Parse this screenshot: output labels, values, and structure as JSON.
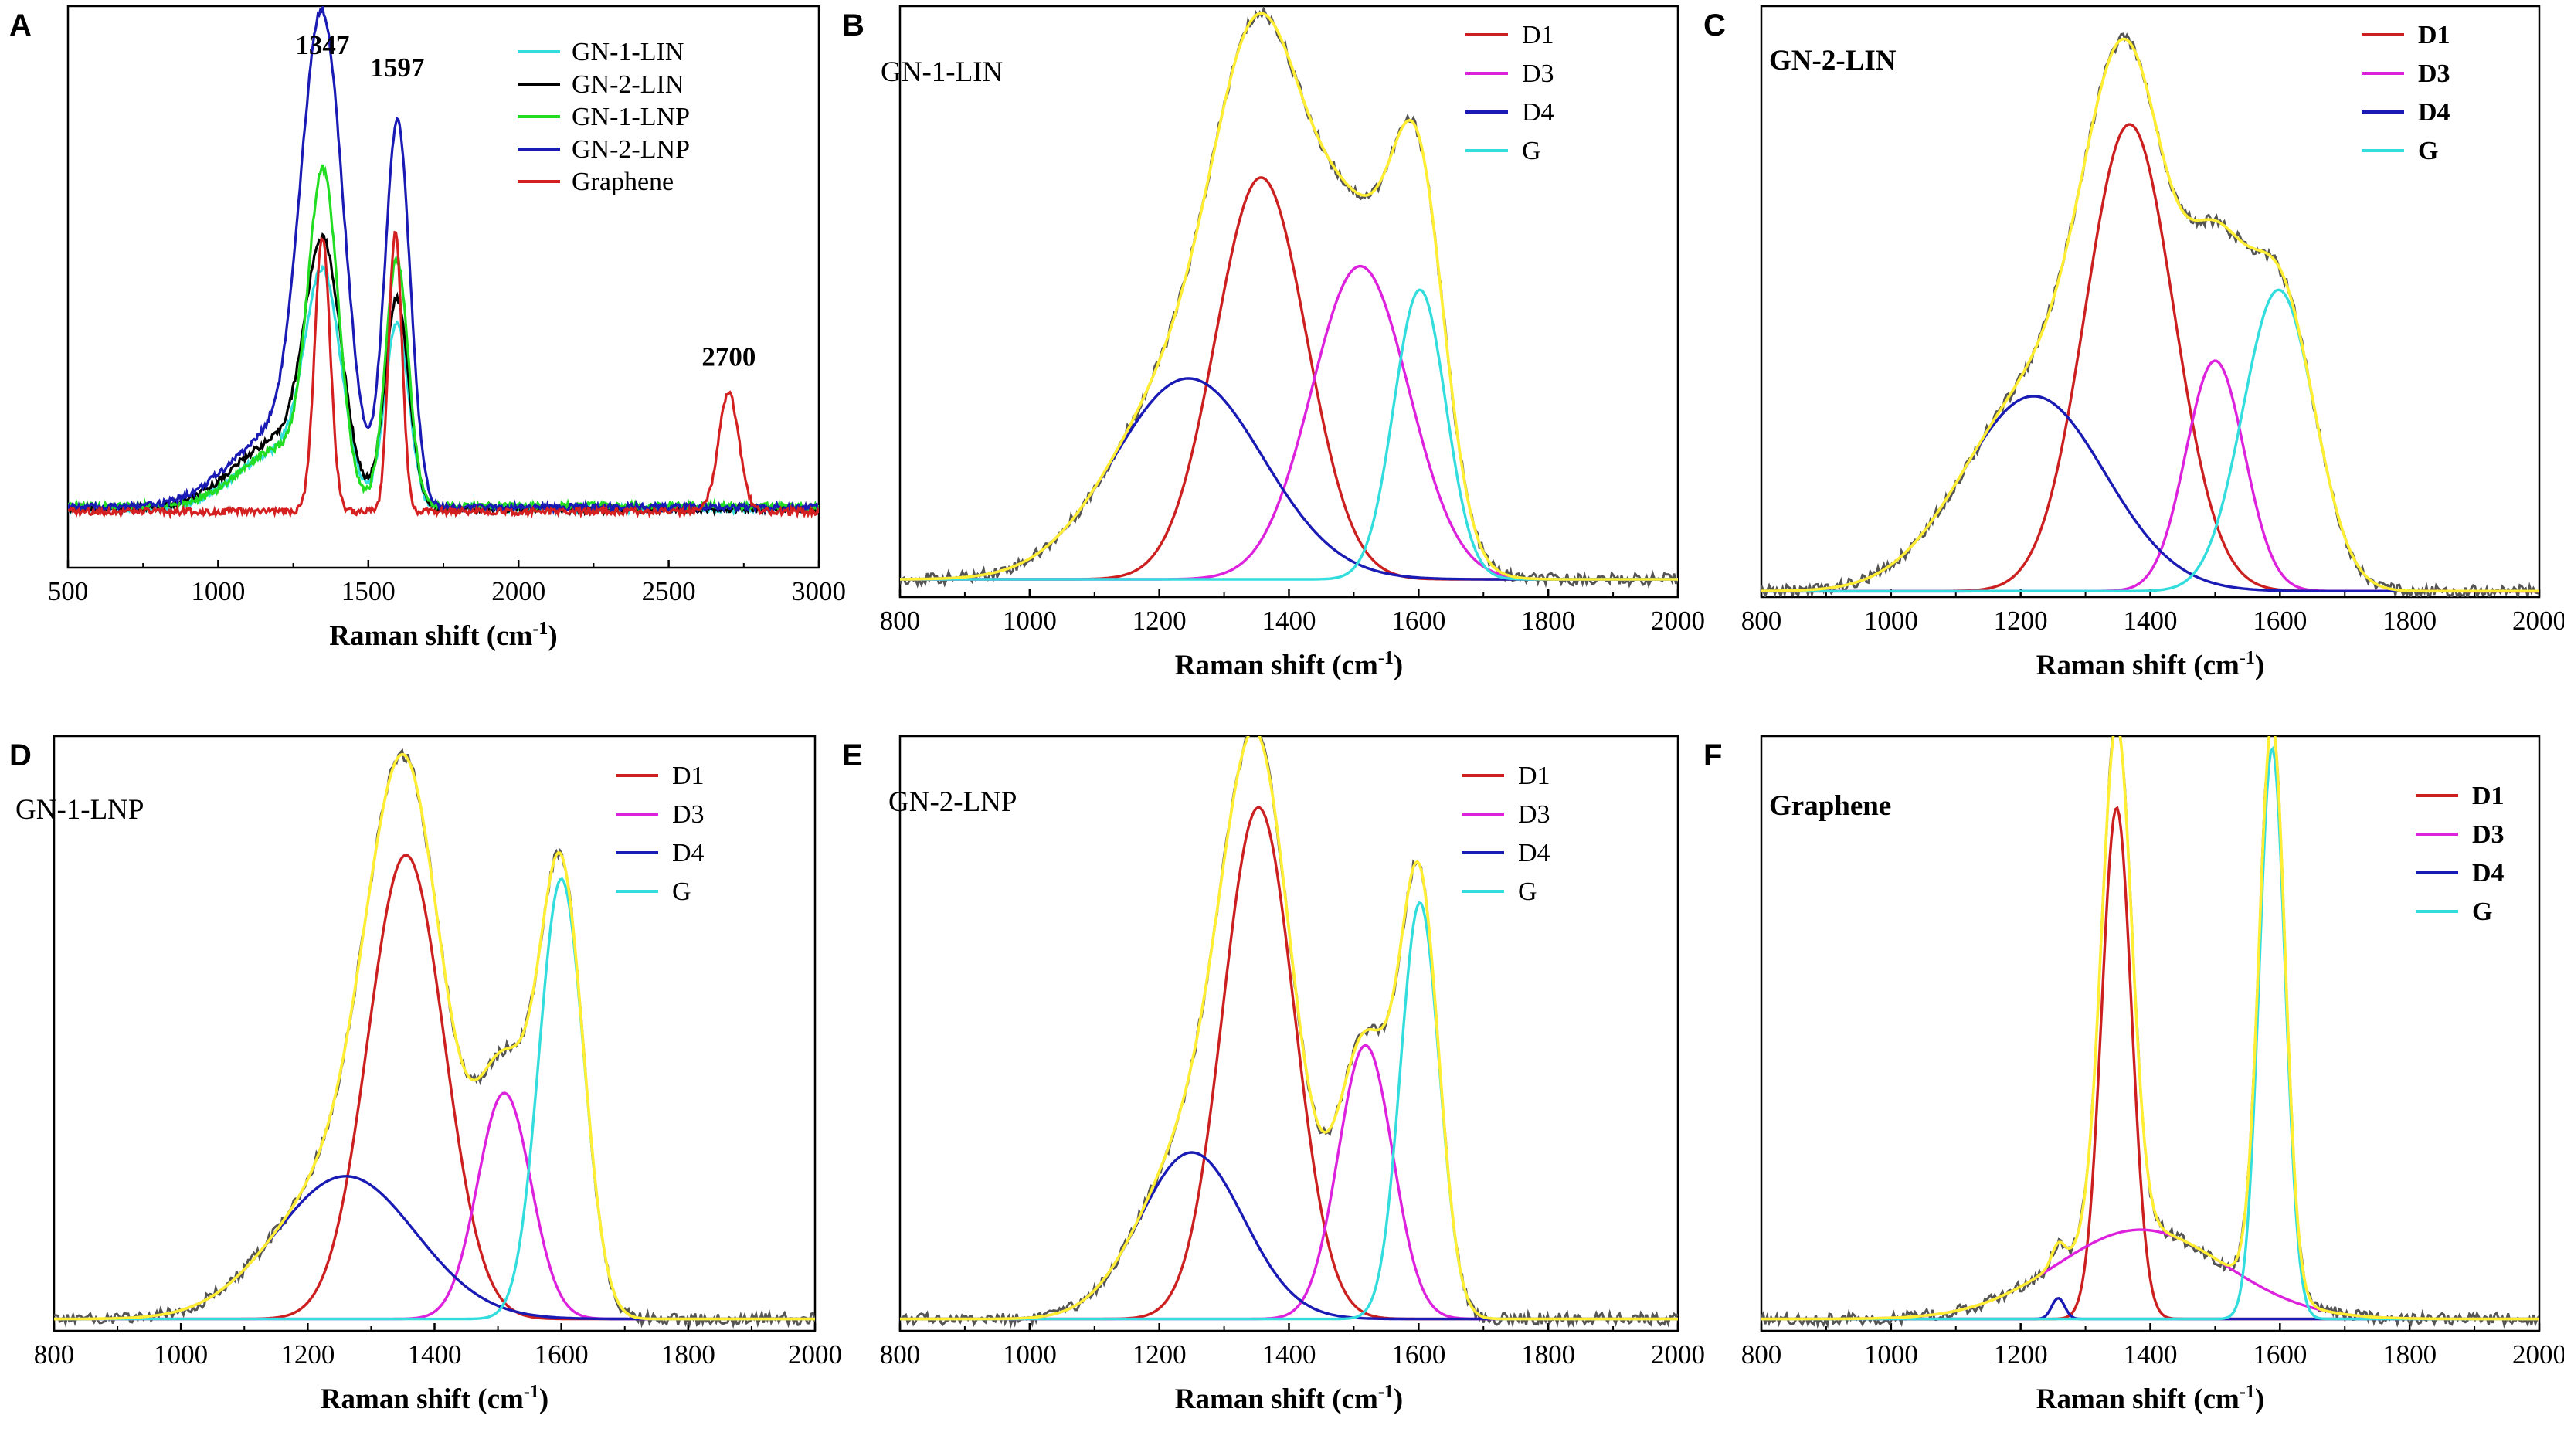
{
  "chart_data": [
    {
      "id": "A",
      "type": "line",
      "panel_letter": "A",
      "xlabel": "Raman shift (cm",
      "xlabel_sup": "-1",
      "xlabel_close": ")",
      "xlim": [
        500,
        3000
      ],
      "ylim": [
        0,
        1.0
      ],
      "xticks": [
        500,
        1000,
        1500,
        2000,
        2500,
        3000
      ],
      "peak_labels": [
        {
          "text": "1347",
          "x": 1347,
          "y": 0.915
        },
        {
          "text": "1597",
          "x": 1597,
          "y": 0.875
        },
        {
          "text": "2700",
          "x": 2700,
          "y": 0.36
        }
      ],
      "series": [
        {
          "name": "GN-1-LIN",
          "color": "#33dddd",
          "baseline": 0.105,
          "peaks": [
            {
              "c": 1350,
              "h": 0.37,
              "w": 60
            },
            {
              "c": 1595,
              "h": 0.33,
              "w": 40
            },
            {
              "c": 1200,
              "h": 0.1,
              "w": 140
            }
          ]
        },
        {
          "name": "GN-2-LIN",
          "color": "#000000",
          "baseline": 0.105,
          "peaks": [
            {
              "c": 1350,
              "h": 0.41,
              "w": 60
            },
            {
              "c": 1595,
              "h": 0.37,
              "w": 40
            },
            {
              "c": 1200,
              "h": 0.12,
              "w": 150
            }
          ]
        },
        {
          "name": "GN-1-LNP",
          "color": "#22dd22",
          "baseline": 0.11,
          "peaks": [
            {
              "c": 1350,
              "h": 0.55,
              "w": 50
            },
            {
              "c": 1595,
              "h": 0.44,
              "w": 38
            },
            {
              "c": 1200,
              "h": 0.1,
              "w": 130
            }
          ]
        },
        {
          "name": "GN-2-LNP",
          "color": "#1a1ab4",
          "baseline": 0.108,
          "peaks": [
            {
              "c": 1347,
              "h": 0.8,
              "w": 70
            },
            {
              "c": 1597,
              "h": 0.68,
              "w": 42
            },
            {
              "c": 1200,
              "h": 0.13,
              "w": 160
            }
          ]
        },
        {
          "name": "Graphene",
          "color": "#d42020",
          "baseline": 0.1,
          "peaks": [
            {
              "c": 1347,
              "h": 0.49,
              "w": 26
            },
            {
              "c": 1590,
              "h": 0.5,
              "w": 22
            },
            {
              "c": 2700,
              "h": 0.21,
              "w": 34
            }
          ]
        }
      ]
    },
    {
      "id": "B",
      "type": "line",
      "panel_letter": "B",
      "sample_label": "GN-1-LIN",
      "xlabel": "Raman shift (cm",
      "xlabel_sup": "-1",
      "xlabel_close": ")",
      "xlim": [
        800,
        2000
      ],
      "ylim": [
        0,
        1.0
      ],
      "xticks": [
        800,
        1000,
        1200,
        1400,
        1600,
        1800,
        2000
      ],
      "baseline": 0.03,
      "series": [
        {
          "name": "D1",
          "color": "#cc2020",
          "center": 1357,
          "height": 0.68,
          "width": 70
        },
        {
          "name": "D3",
          "color": "#dd22dd",
          "center": 1510,
          "height": 0.53,
          "width": 75
        },
        {
          "name": "D4",
          "color": "#1a1ab4",
          "center": 1245,
          "height": 0.34,
          "width": 115
        },
        {
          "name": "G",
          "color": "#33dddd",
          "center": 1602,
          "height": 0.49,
          "width": 40
        }
      ],
      "fit_color": "#ffee33",
      "measured_color": "#555555"
    },
    {
      "id": "C",
      "type": "line",
      "panel_letter": "C",
      "sample_label": "GN-2-LIN",
      "xlabel": "Raman shift (cm",
      "xlabel_sup": "-1",
      "xlabel_close": ")",
      "xlim": [
        800,
        2000
      ],
      "ylim": [
        0,
        1.0
      ],
      "xticks": [
        800,
        1000,
        1200,
        1400,
        1600,
        1800,
        2000
      ],
      "baseline": 0.01,
      "series": [
        {
          "name": "D1",
          "color": "#cc2020",
          "center": 1368,
          "height": 0.79,
          "width": 68
        },
        {
          "name": "D3",
          "color": "#dd22dd",
          "center": 1500,
          "height": 0.39,
          "width": 45
        },
        {
          "name": "D4",
          "color": "#1a1ab4",
          "center": 1220,
          "height": 0.33,
          "width": 110
        },
        {
          "name": "G",
          "color": "#33dddd",
          "center": 1598,
          "height": 0.51,
          "width": 55
        }
      ],
      "fit_color": "#ffee33",
      "measured_color": "#555555"
    },
    {
      "id": "D",
      "type": "line",
      "panel_letter": "D",
      "sample_label": "GN-1-LNP",
      "xlabel": "Raman shift (cm",
      "xlabel_sup": "-1",
      "xlabel_close": ")",
      "xlim": [
        800,
        2000
      ],
      "ylim": [
        0,
        1.0
      ],
      "xticks": [
        800,
        1000,
        1200,
        1400,
        1600,
        1800,
        2000
      ],
      "baseline": 0.02,
      "series": [
        {
          "name": "D1",
          "color": "#cc2020",
          "center": 1355,
          "height": 0.78,
          "width": 60
        },
        {
          "name": "D3",
          "color": "#dd22dd",
          "center": 1510,
          "height": 0.38,
          "width": 42
        },
        {
          "name": "D4",
          "color": "#1a1ab4",
          "center": 1260,
          "height": 0.24,
          "width": 110
        },
        {
          "name": "G",
          "color": "#33dddd",
          "center": 1600,
          "height": 0.74,
          "width": 35
        }
      ],
      "fit_color": "#ffee33",
      "measured_color": "#555555"
    },
    {
      "id": "E",
      "type": "line",
      "panel_letter": "E",
      "sample_label": "GN-2-LNP",
      "xlabel": "Raman shift (cm",
      "xlabel_sup": "-1",
      "xlabel_close": ")",
      "xlim": [
        800,
        2000
      ],
      "ylim": [
        0,
        1.0
      ],
      "xticks": [
        800,
        1000,
        1200,
        1400,
        1600,
        1800,
        2000
      ],
      "baseline": 0.02,
      "series": [
        {
          "name": "D1",
          "color": "#cc2020",
          "center": 1353,
          "height": 0.86,
          "width": 55
        },
        {
          "name": "D3",
          "color": "#dd22dd",
          "center": 1518,
          "height": 0.46,
          "width": 42
        },
        {
          "name": "D4",
          "color": "#1a1ab4",
          "center": 1250,
          "height": 0.28,
          "width": 80
        },
        {
          "name": "G",
          "color": "#33dddd",
          "center": 1602,
          "height": 0.7,
          "width": 30
        }
      ],
      "fit_color": "#ffee33",
      "measured_color": "#555555"
    },
    {
      "id": "F",
      "type": "line",
      "panel_letter": "F",
      "sample_label": "Graphene",
      "xlabel": "Raman shift (cm",
      "xlabel_sup": "-1",
      "xlabel_close": ")",
      "xlim": [
        800,
        2000
      ],
      "ylim": [
        0,
        1.0
      ],
      "xticks": [
        800,
        1000,
        1200,
        1400,
        1600,
        1800,
        2000
      ],
      "baseline": 0.02,
      "series": [
        {
          "name": "D1",
          "color": "#cc2020",
          "center": 1348,
          "height": 0.86,
          "width": 23
        },
        {
          "name": "D3",
          "color": "#dd22dd",
          "center": 1385,
          "height": 0.15,
          "width": 130
        },
        {
          "name": "D4",
          "color": "#1a1ab4",
          "center": 1258,
          "height": 0.035,
          "width": 10
        },
        {
          "name": "G",
          "color": "#33dddd",
          "center": 1588,
          "height": 0.96,
          "width": 20
        }
      ],
      "fit_color": "#ffee33",
      "measured_color": "#555555"
    }
  ]
}
